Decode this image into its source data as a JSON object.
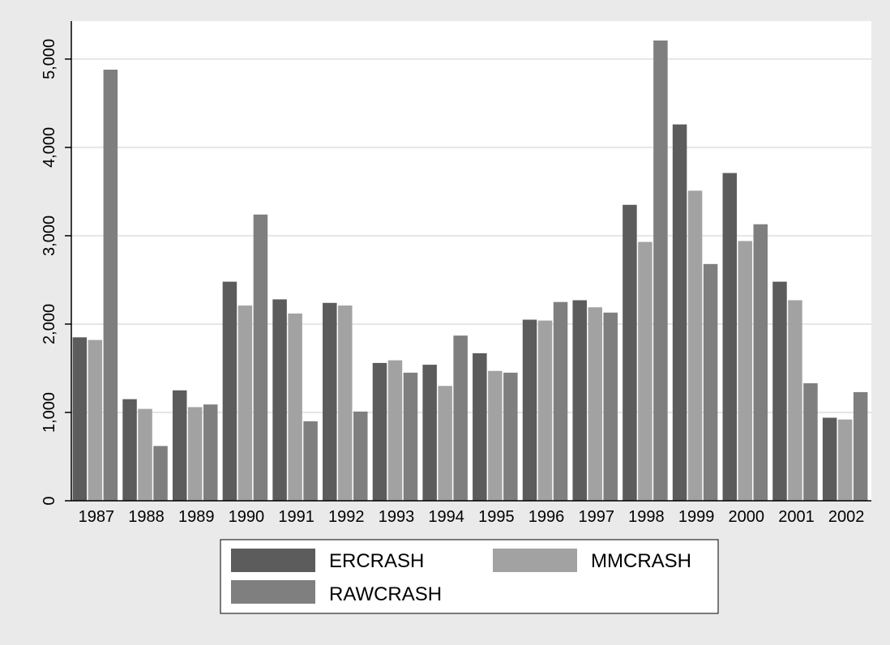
{
  "chart_data": {
    "type": "bar",
    "categories": [
      "1987",
      "1988",
      "1989",
      "1990",
      "1991",
      "1992",
      "1993",
      "1994",
      "1995",
      "1996",
      "1997",
      "1998",
      "1999",
      "2000",
      "2001",
      "2002"
    ],
    "series": [
      {
        "name": "ERCRASH",
        "color": "#5c5c5c",
        "values": [
          1850,
          1150,
          1250,
          2480,
          2280,
          2240,
          1560,
          1540,
          1670,
          2050,
          2270,
          3350,
          4260,
          3710,
          2480,
          940
        ]
      },
      {
        "name": "MMCRASH",
        "color": "#a2a2a2",
        "values": [
          1820,
          1040,
          1060,
          2210,
          2120,
          2210,
          1590,
          1300,
          1470,
          2040,
          2190,
          2930,
          3510,
          2940,
          2270,
          920
        ]
      },
      {
        "name": "RAWCRASH",
        "color": "#7f7f7f",
        "values": [
          4880,
          620,
          1090,
          3240,
          900,
          1010,
          1450,
          1870,
          1450,
          2250,
          2130,
          5210,
          2680,
          3130,
          1330,
          1230
        ]
      }
    ],
    "yticks": [
      0,
      1000,
      2000,
      3000,
      4000,
      5000
    ],
    "ytick_labels": [
      "0",
      "1,000",
      "2,000",
      "3,000",
      "4,000",
      "5,000"
    ],
    "ylim": [
      0,
      5430
    ],
    "title": "",
    "xlabel": "",
    "ylabel": "",
    "grid": true,
    "legend_position": "bottom",
    "colors": {
      "background": "#eaeaea",
      "plot_background": "#ffffff",
      "gridline": "#e6e6e6",
      "axis": "#000000"
    }
  }
}
